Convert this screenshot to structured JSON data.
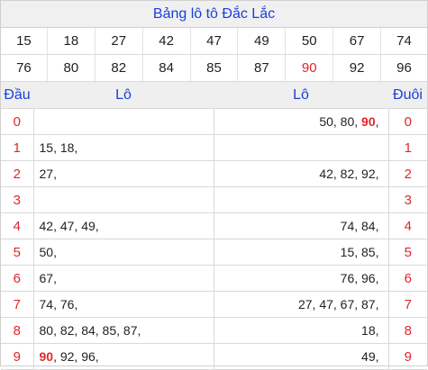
{
  "title": "Bảng lô tô Đắc Lắc",
  "numbers": [
    [
      "15",
      "18",
      "27",
      "42",
      "47",
      "49",
      "50",
      "67",
      "74"
    ],
    [
      "76",
      "80",
      "82",
      "84",
      "85",
      "87",
      "90",
      "92",
      "96"
    ]
  ],
  "highlight_number": "90",
  "headers": {
    "head": "Đầu",
    "lo_left": "Lô",
    "lo_right": "Lô",
    "tail": "Đuôi"
  },
  "rows": [
    {
      "head": "0",
      "left": "",
      "right_pre": "50, 80, ",
      "right_hot": "90",
      "right_post": ",",
      "tail": "0"
    },
    {
      "head": "1",
      "left_pre": "",
      "left_hot": "",
      "left": "15, 18,",
      "right": "",
      "tail": "1"
    },
    {
      "head": "2",
      "left": "27,",
      "right": "42, 82, 92,",
      "tail": "2"
    },
    {
      "head": "3",
      "left": "",
      "right": "",
      "tail": "3"
    },
    {
      "head": "4",
      "left": "42, 47, 49,",
      "right": "74, 84,",
      "tail": "4"
    },
    {
      "head": "5",
      "left": "50,",
      "right": "15, 85,",
      "tail": "5"
    },
    {
      "head": "6",
      "left": "67,",
      "right": "76, 96,",
      "tail": "6"
    },
    {
      "head": "7",
      "left": "74, 76,",
      "right": "27, 47, 67, 87,",
      "tail": "7"
    },
    {
      "head": "8",
      "left": "80, 82, 84, 85, 87,",
      "right": "18,",
      "tail": "8"
    },
    {
      "head": "9",
      "left_hot": "90",
      "left_post": ", 92, 96,",
      "right": "49,",
      "tail": "9"
    }
  ]
}
